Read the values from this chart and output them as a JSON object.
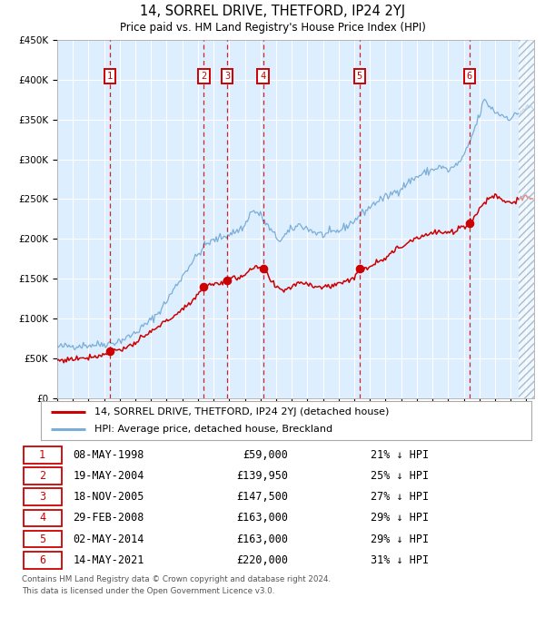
{
  "title": "14, SORREL DRIVE, THETFORD, IP24 2YJ",
  "subtitle": "Price paid vs. HM Land Registry's House Price Index (HPI)",
  "legend_line1": "14, SORREL DRIVE, THETFORD, IP24 2YJ (detached house)",
  "legend_line2": "HPI: Average price, detached house, Breckland",
  "footer1": "Contains HM Land Registry data © Crown copyright and database right 2024.",
  "footer2": "This data is licensed under the Open Government Licence v3.0.",
  "transactions": [
    {
      "num": 1,
      "date": "08-MAY-1998",
      "price": "£59,000",
      "pct": "21% ↓ HPI",
      "x_year": 1998.36,
      "y_val": 59000
    },
    {
      "num": 2,
      "date": "19-MAY-2004",
      "price": "£139,950",
      "pct": "25% ↓ HPI",
      "x_year": 2004.38,
      "y_val": 139950
    },
    {
      "num": 3,
      "date": "18-NOV-2005",
      "price": "£147,500",
      "pct": "27% ↓ HPI",
      "x_year": 2005.88,
      "y_val": 147500
    },
    {
      "num": 4,
      "date": "29-FEB-2008",
      "price": "£163,000",
      "pct": "29% ↓ HPI",
      "x_year": 2008.16,
      "y_val": 163000
    },
    {
      "num": 5,
      "date": "02-MAY-2014",
      "price": "£163,000",
      "pct": "29% ↓ HPI",
      "x_year": 2014.33,
      "y_val": 163000
    },
    {
      "num": 6,
      "date": "14-MAY-2021",
      "price": "£220,000",
      "pct": "31% ↓ HPI",
      "x_year": 2021.37,
      "y_val": 220000
    }
  ],
  "red_line_color": "#cc0000",
  "blue_line_color": "#7aaed6",
  "dot_color": "#cc0000",
  "vline_color": "#cc0000",
  "background_color": "#ddeeff",
  "grid_color": "#ffffff",
  "label_box_color": "#cc0000",
  "yticks": [
    0,
    50000,
    100000,
    150000,
    200000,
    250000,
    300000,
    350000,
    400000,
    450000
  ],
  "ylabels": [
    "£0",
    "£50K",
    "£100K",
    "£150K",
    "£200K",
    "£250K",
    "£300K",
    "£350K",
    "£400K",
    "£450K"
  ],
  "ylim": [
    0,
    450000
  ],
  "xlim_start": 1995.0,
  "xlim_end": 2025.5
}
